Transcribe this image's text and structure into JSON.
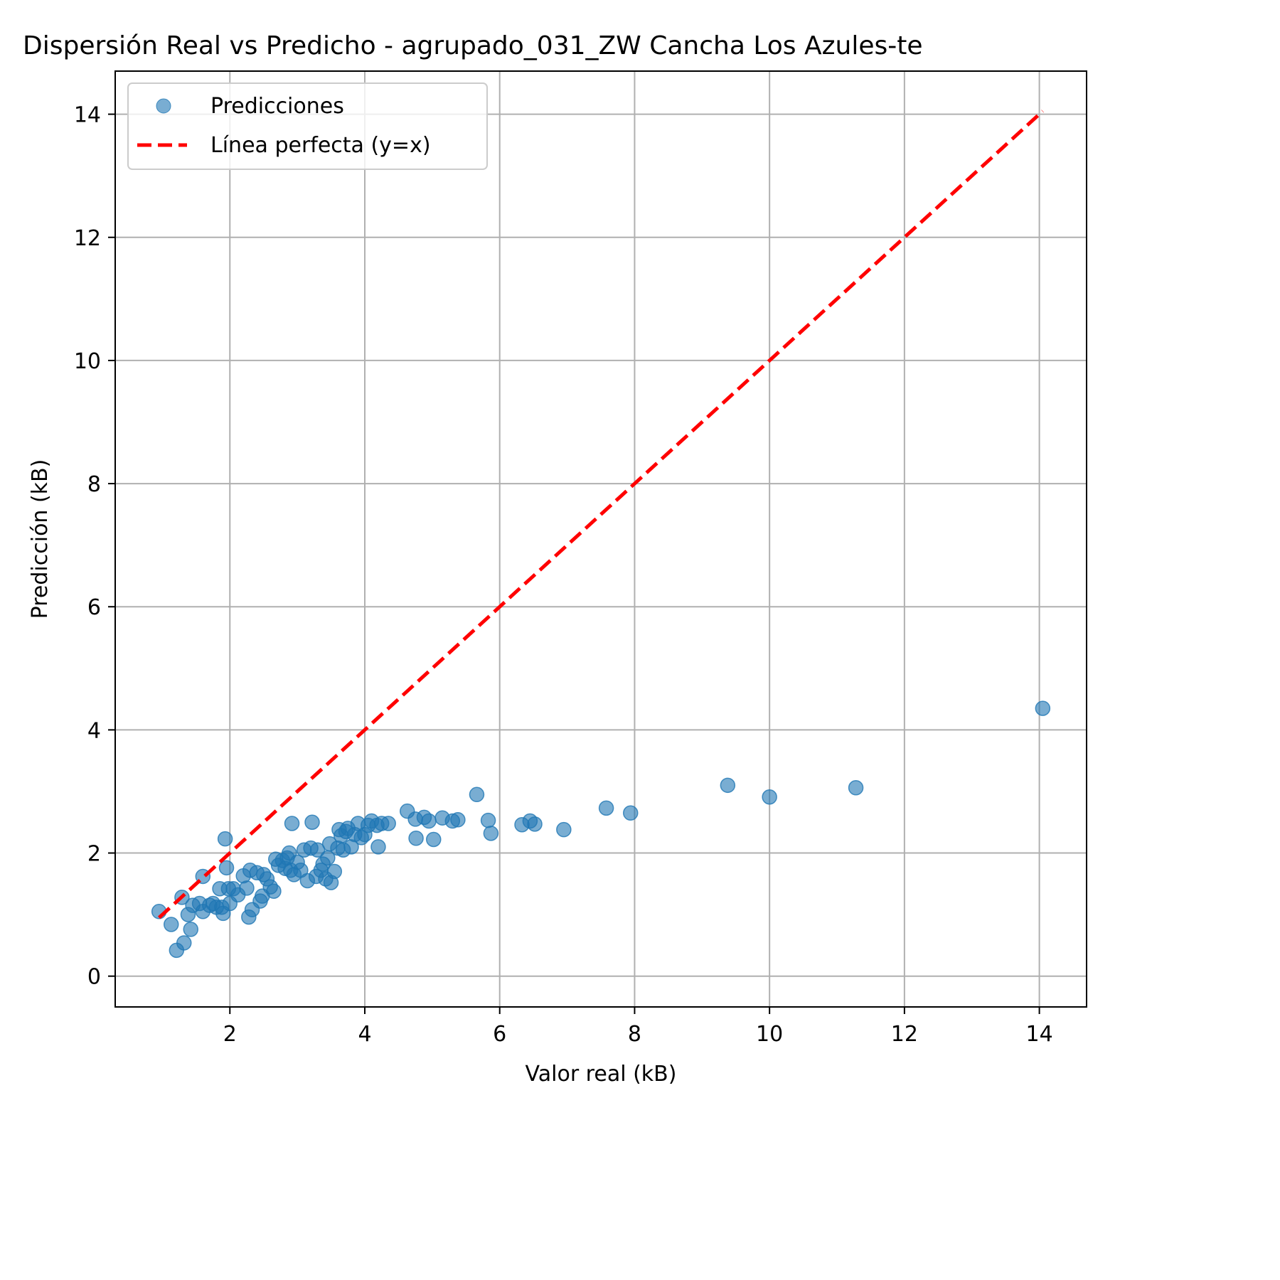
{
  "chart_data": {
    "type": "scatter",
    "title": "Dispersión Real vs Predicho - agrupado_031_ZW Cancha Los Azules-te",
    "xlabel": "Valor real (kB)",
    "ylabel": "Predicción (kB)",
    "xlim": [
      0.3,
      14.7
    ],
    "ylim": [
      -0.5,
      14.7
    ],
    "xticks": [
      2,
      4,
      6,
      8,
      10,
      12,
      14
    ],
    "yticks": [
      0,
      2,
      4,
      6,
      8,
      10,
      12,
      14
    ],
    "grid": true,
    "legend_position": "top-left",
    "series": [
      {
        "name": "Predicciones",
        "kind": "scatter",
        "color": "#1f77b4",
        "points": [
          [
            0.95,
            1.05
          ],
          [
            1.13,
            0.84
          ],
          [
            1.21,
            0.42
          ],
          [
            1.29,
            1.28
          ],
          [
            1.32,
            0.54
          ],
          [
            1.38,
            1.0
          ],
          [
            1.42,
            0.76
          ],
          [
            1.45,
            1.15
          ],
          [
            1.55,
            1.18
          ],
          [
            1.6,
            1.62
          ],
          [
            1.6,
            1.05
          ],
          [
            1.7,
            1.15
          ],
          [
            1.75,
            1.18
          ],
          [
            1.8,
            1.12
          ],
          [
            1.85,
            1.42
          ],
          [
            1.88,
            1.12
          ],
          [
            1.9,
            1.02
          ],
          [
            1.93,
            2.23
          ],
          [
            1.95,
            1.76
          ],
          [
            1.98,
            1.42
          ],
          [
            2.0,
            1.18
          ],
          [
            2.05,
            1.42
          ],
          [
            2.12,
            1.32
          ],
          [
            2.2,
            1.63
          ],
          [
            2.25,
            1.43
          ],
          [
            2.28,
            0.96
          ],
          [
            2.3,
            1.72
          ],
          [
            2.33,
            1.08
          ],
          [
            2.4,
            1.68
          ],
          [
            2.45,
            1.22
          ],
          [
            2.48,
            1.3
          ],
          [
            2.5,
            1.65
          ],
          [
            2.55,
            1.58
          ],
          [
            2.6,
            1.45
          ],
          [
            2.65,
            1.38
          ],
          [
            2.68,
            1.9
          ],
          [
            2.72,
            1.8
          ],
          [
            2.78,
            1.88
          ],
          [
            2.82,
            1.75
          ],
          [
            2.85,
            1.92
          ],
          [
            2.88,
            2.0
          ],
          [
            2.9,
            1.72
          ],
          [
            2.92,
            2.48
          ],
          [
            2.95,
            1.65
          ],
          [
            3.0,
            1.85
          ],
          [
            3.05,
            1.72
          ],
          [
            3.1,
            2.05
          ],
          [
            3.15,
            1.55
          ],
          [
            3.2,
            2.08
          ],
          [
            3.22,
            2.5
          ],
          [
            3.28,
            1.62
          ],
          [
            3.3,
            2.05
          ],
          [
            3.35,
            1.72
          ],
          [
            3.38,
            1.82
          ],
          [
            3.42,
            1.58
          ],
          [
            3.45,
            1.92
          ],
          [
            3.48,
            2.15
          ],
          [
            3.5,
            1.52
          ],
          [
            3.55,
            1.7
          ],
          [
            3.6,
            2.08
          ],
          [
            3.62,
            2.38
          ],
          [
            3.65,
            2.28
          ],
          [
            3.68,
            2.05
          ],
          [
            3.72,
            2.35
          ],
          [
            3.75,
            2.4
          ],
          [
            3.8,
            2.1
          ],
          [
            3.85,
            2.3
          ],
          [
            3.9,
            2.48
          ],
          [
            3.95,
            2.25
          ],
          [
            4.0,
            2.3
          ],
          [
            4.05,
            2.45
          ],
          [
            4.1,
            2.52
          ],
          [
            4.18,
            2.45
          ],
          [
            4.2,
            2.1
          ],
          [
            4.25,
            2.48
          ],
          [
            4.35,
            2.48
          ],
          [
            4.63,
            2.68
          ],
          [
            4.75,
            2.55
          ],
          [
            4.76,
            2.24
          ],
          [
            4.88,
            2.58
          ],
          [
            4.95,
            2.52
          ],
          [
            5.02,
            2.22
          ],
          [
            5.15,
            2.57
          ],
          [
            5.3,
            2.52
          ],
          [
            5.38,
            2.54
          ],
          [
            5.66,
            2.95
          ],
          [
            5.83,
            2.53
          ],
          [
            5.87,
            2.32
          ],
          [
            6.33,
            2.46
          ],
          [
            6.45,
            2.52
          ],
          [
            6.52,
            2.47
          ],
          [
            6.95,
            2.38
          ],
          [
            7.58,
            2.73
          ],
          [
            7.94,
            2.65
          ],
          [
            9.38,
            3.1
          ],
          [
            10.0,
            2.91
          ],
          [
            11.28,
            3.06
          ],
          [
            14.05,
            4.35
          ]
        ]
      },
      {
        "name": "Línea perfecta (y=x)",
        "kind": "line",
        "style": "dashed",
        "color": "#ff0000",
        "x": [
          0.95,
          14.05
        ],
        "y": [
          0.95,
          14.05
        ]
      }
    ]
  }
}
